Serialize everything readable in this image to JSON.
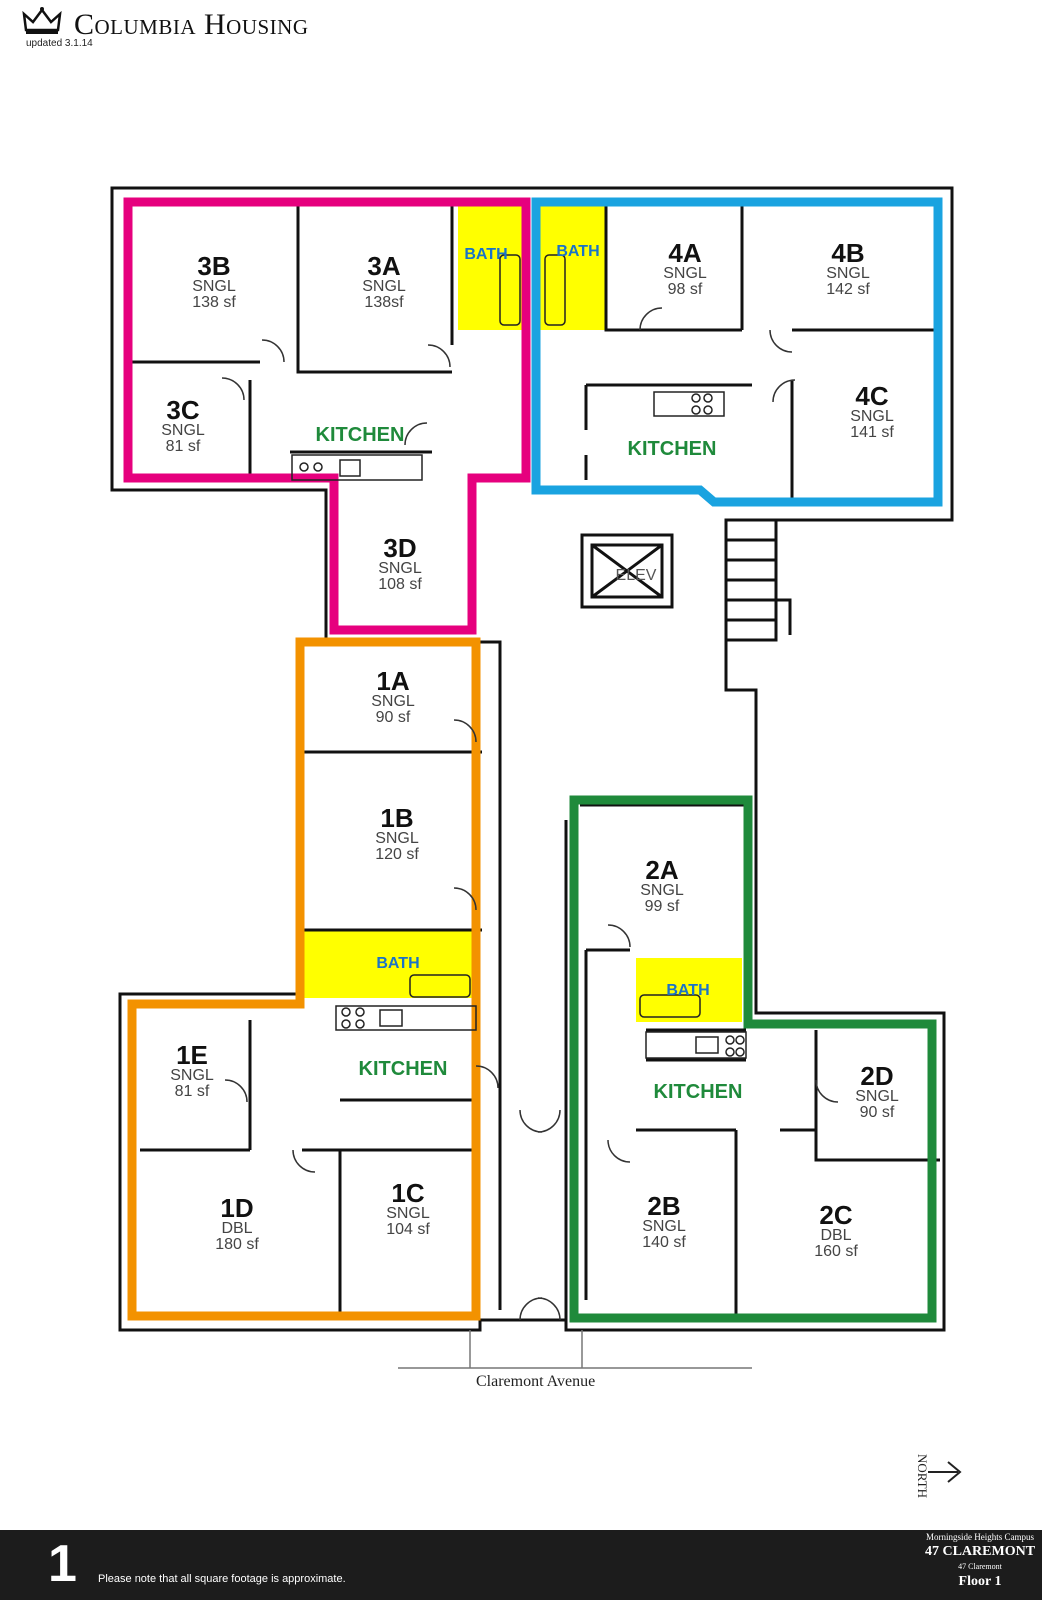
{
  "header": {
    "brand": "Columbia Housing",
    "updated": "updated 3.1.14"
  },
  "street": "Claremont Avenue",
  "north_label": "NORTH",
  "rooms": [
    {
      "id": "3B",
      "type": "SNGL",
      "area": "138 sf"
    },
    {
      "id": "3A",
      "type": "SNGL",
      "area": "138sf"
    },
    {
      "id": "3C",
      "type": "SNGL",
      "area": "81 sf"
    },
    {
      "id": "3D",
      "type": "SNGL",
      "area": "108 sf"
    },
    {
      "id": "4A",
      "type": "SNGL",
      "area": "98 sf"
    },
    {
      "id": "4B",
      "type": "SNGL",
      "area": "142 sf"
    },
    {
      "id": "4C",
      "type": "SNGL",
      "area": "141 sf"
    },
    {
      "id": "1A",
      "type": "SNGL",
      "area": "90 sf"
    },
    {
      "id": "1B",
      "type": "SNGL",
      "area": "120 sf"
    },
    {
      "id": "1E",
      "type": "SNGL",
      "area": "81 sf"
    },
    {
      "id": "1D",
      "type": "DBL",
      "area": "180 sf"
    },
    {
      "id": "1C",
      "type": "SNGL",
      "area": "104 sf"
    },
    {
      "id": "2A",
      "type": "SNGL",
      "area": "99 sf"
    },
    {
      "id": "2D",
      "type": "SNGL",
      "area": "90 sf"
    },
    {
      "id": "2B",
      "type": "SNGL",
      "area": "140 sf"
    },
    {
      "id": "2C",
      "type": "DBL",
      "area": "160 sf"
    }
  ],
  "shared_labels": {
    "kitchen": "KITCHEN",
    "bath": "BATH",
    "elevator": "ELEV"
  },
  "suite_colors": {
    "suite3": "#e6007e",
    "suite4": "#1aa3e0",
    "suite1": "#f39200",
    "suite2": "#1f8a3b",
    "bath": "#ffff00",
    "kitchen_text": "#1f8a3b",
    "bath_text": "#1a73c8"
  },
  "footer": {
    "floor_number": "1",
    "note": "Please note that all square footage is approximate.",
    "campus": "Morningside Heights Campus",
    "building": "47 CLAREMONT",
    "building_small": "47 Claremont",
    "floor_label": "Floor 1"
  }
}
